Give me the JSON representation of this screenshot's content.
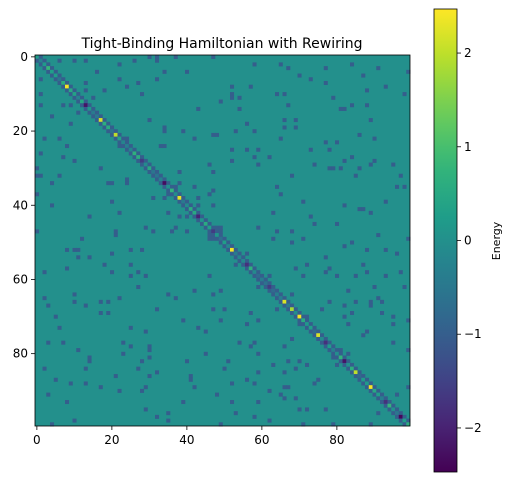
{
  "chart_data": {
    "type": "heatmap",
    "title": "Tight-Binding Hamiltonian with Rewiring",
    "xlabel": "",
    "ylabel": "",
    "size": 100,
    "colormap": "viridis",
    "vmin": -2.47,
    "vmax": 2.47,
    "hopping": -1.0,
    "background_value": 0.0,
    "xticks": [
      0,
      20,
      40,
      60,
      80
    ],
    "yticks": [
      0,
      20,
      40,
      60,
      80
    ],
    "xtick_labels": [
      "0",
      "20",
      "40",
      "60",
      "80"
    ],
    "ytick_labels": [
      "0",
      "20",
      "40",
      "60",
      "80"
    ],
    "colorbar": {
      "label": "Energy",
      "ticks": [
        2,
        1,
        0,
        -1,
        -2
      ],
      "tick_labels": [
        "2",
        "1",
        "0",
        "−1",
        "−2"
      ]
    },
    "diagonal_onsite_energies": [
      {
        "index": 8,
        "value": 2.4
      },
      {
        "index": 13,
        "value": -2.2
      },
      {
        "index": 17,
        "value": 2.2
      },
      {
        "index": 21,
        "value": 2.0
      },
      {
        "index": 28,
        "value": -1.6
      },
      {
        "index": 34,
        "value": -2.3
      },
      {
        "index": 38,
        "value": 2.3
      },
      {
        "index": 43,
        "value": -2.0
      },
      {
        "index": 47,
        "value": -1.6
      },
      {
        "index": 52,
        "value": 2.4
      },
      {
        "index": 56,
        "value": -1.8
      },
      {
        "index": 62,
        "value": -1.6
      },
      {
        "index": 66,
        "value": 2.2
      },
      {
        "index": 68,
        "value": 1.8
      },
      {
        "index": 70,
        "value": 2.4
      },
      {
        "index": 75,
        "value": 2.2
      },
      {
        "index": 77,
        "value": -1.8
      },
      {
        "index": 82,
        "value": -2.2
      },
      {
        "index": 85,
        "value": 2.0
      },
      {
        "index": 89,
        "value": 2.4
      },
      {
        "index": 93,
        "value": -1.8
      },
      {
        "index": 97,
        "value": -2.4
      }
    ],
    "rewired_off_diagonal_count": 180
  }
}
